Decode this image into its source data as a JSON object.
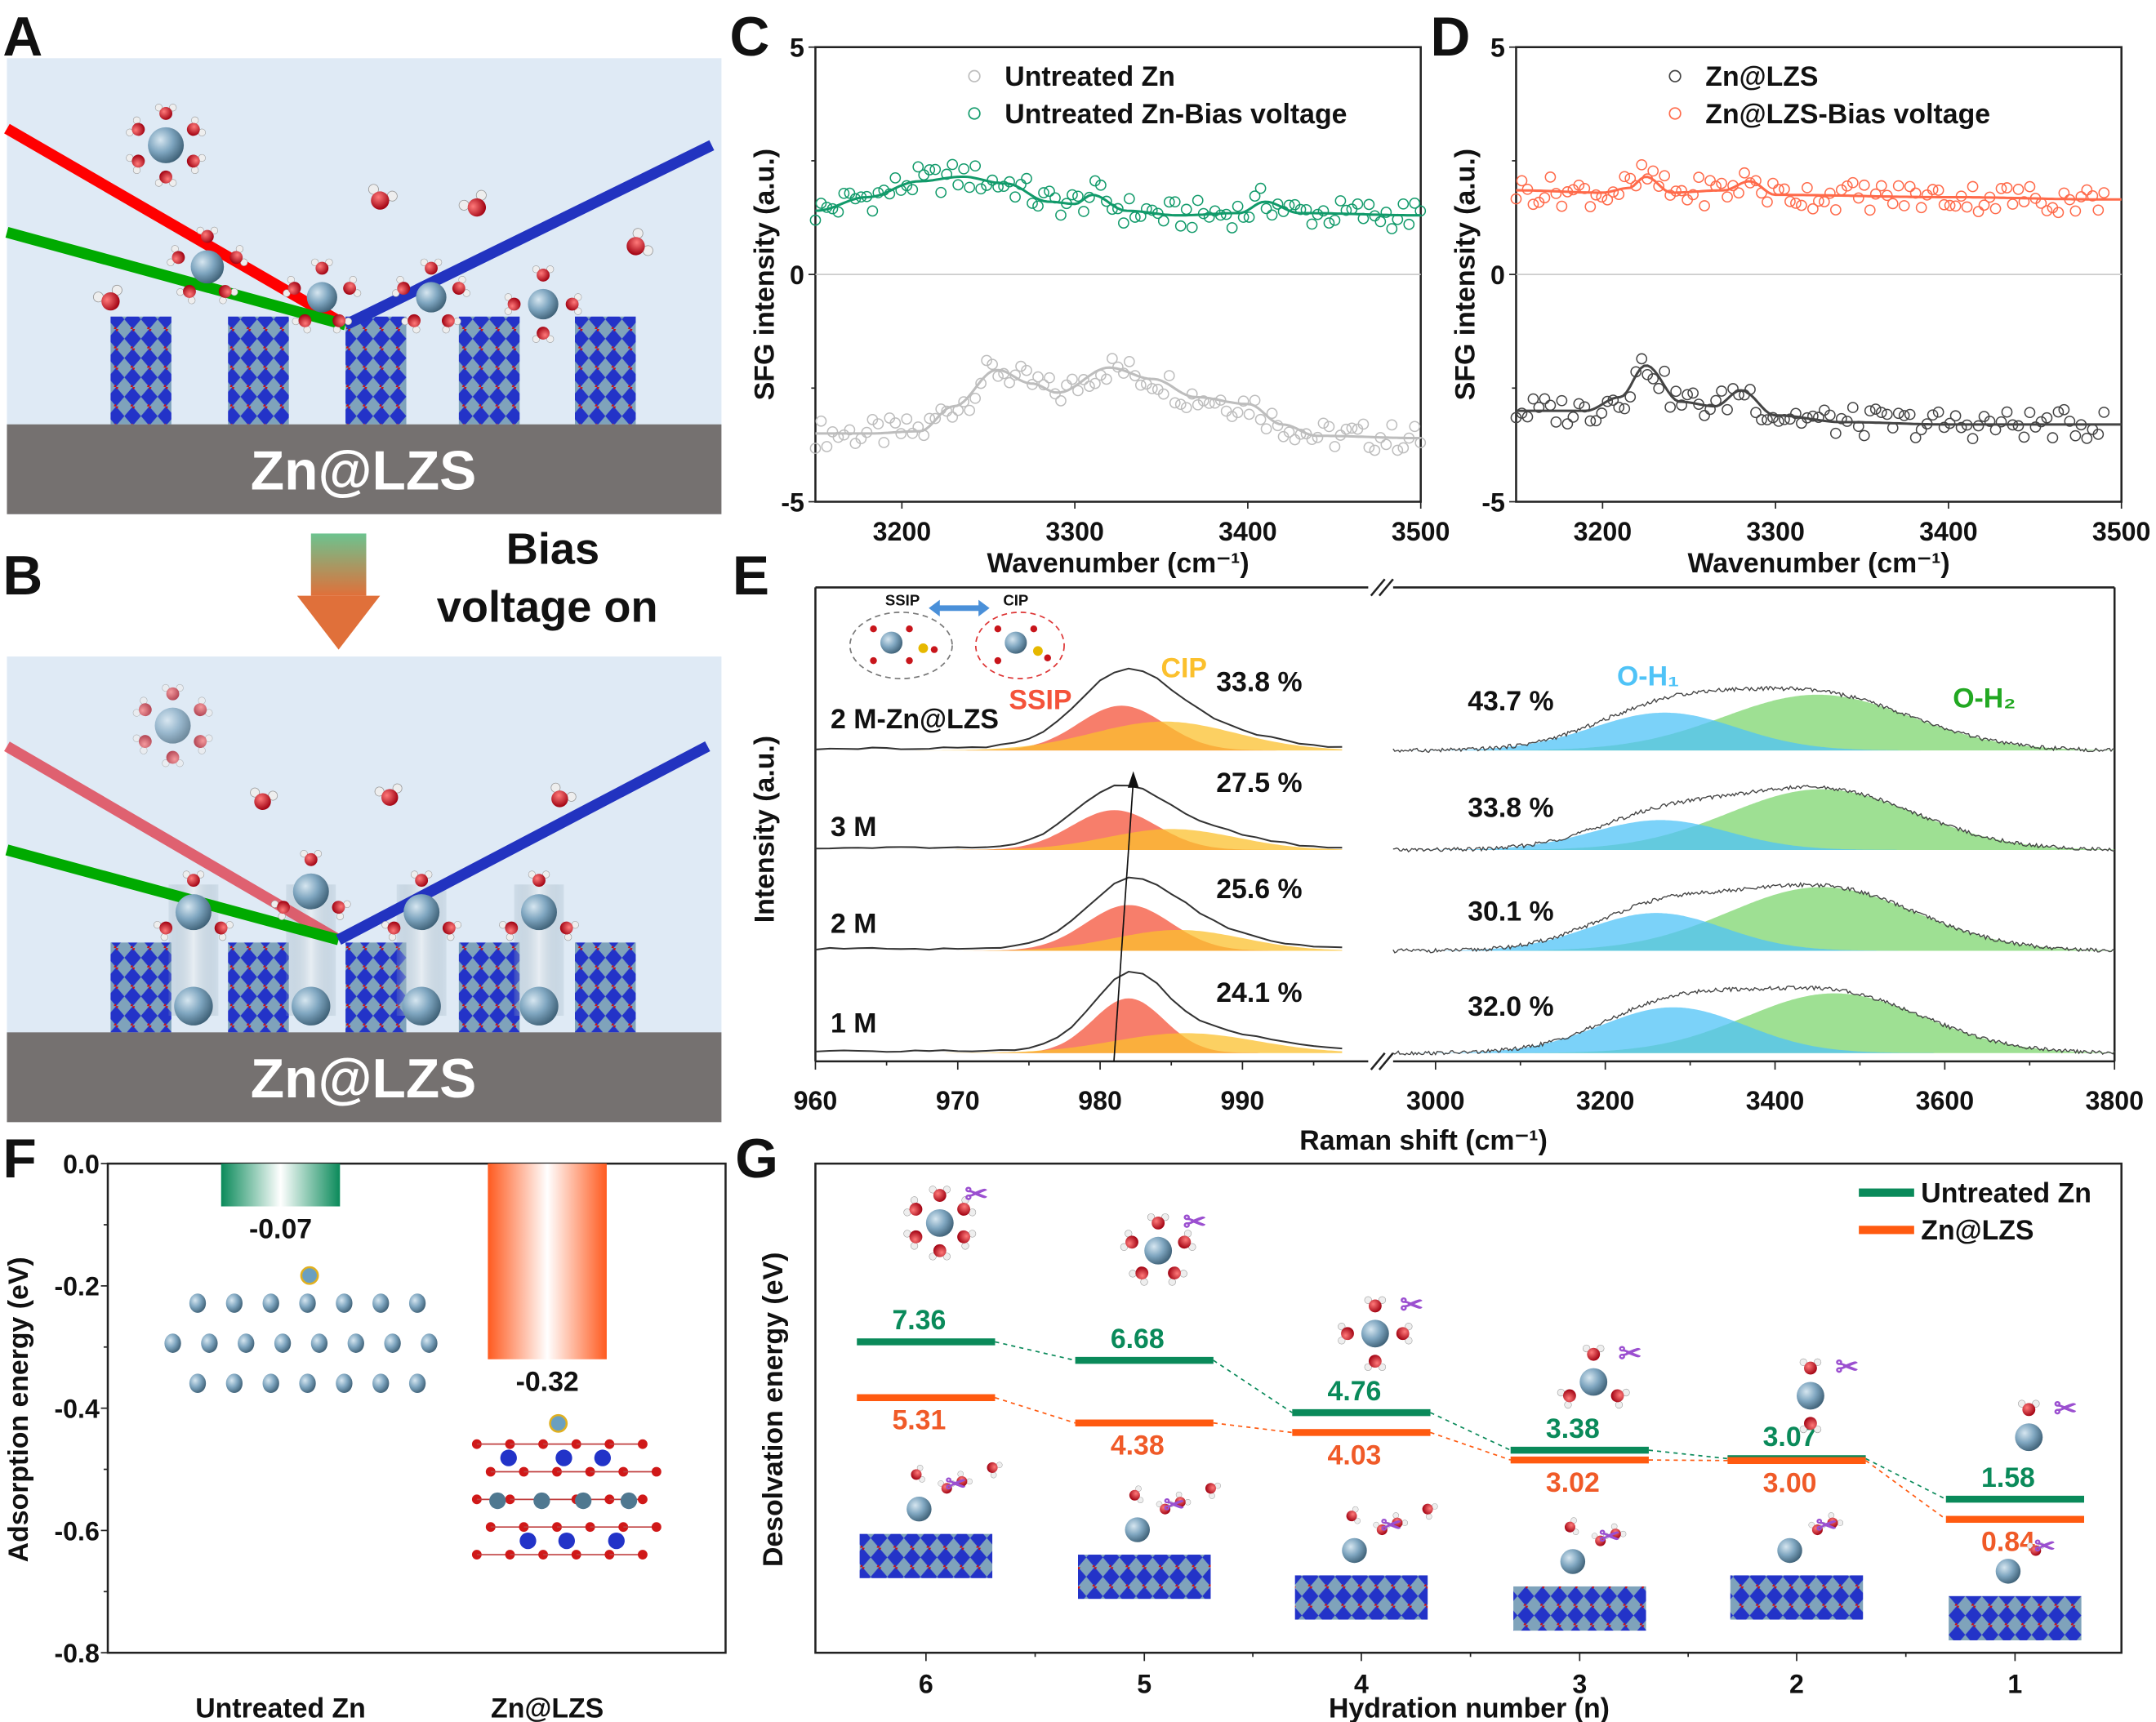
{
  "panels": {
    "A": {
      "label": "A",
      "substrate": "Zn@LZS"
    },
    "B": {
      "label": "B",
      "substrate": "Zn@LZS",
      "arrow_text_line1": "Bias",
      "arrow_text_line2": "voltage on"
    },
    "C": {
      "label": "C"
    },
    "D": {
      "label": "D"
    },
    "E": {
      "label": "E"
    },
    "F": {
      "label": "F"
    },
    "G": {
      "label": "G"
    }
  },
  "colors": {
    "untreated": "#0a8a5a",
    "lzs": "#ff5a10",
    "ssip": "#f4533a",
    "cip": "#fbc02d",
    "oh1": "#4fc3f7",
    "oh2": "#7ed66f",
    "substrate": "#757170",
    "solution": "#dfeaf5"
  },
  "chart_data": [
    {
      "id": "C",
      "type": "scatter",
      "xlabel": "Wavenumber (cm⁻¹)",
      "ylabel": "SFG intensity (a.u.)",
      "xlim": [
        3150,
        3500
      ],
      "ylim": [
        -5,
        5
      ],
      "xticks": [
        "3200",
        "3300",
        "3400",
        "3500"
      ],
      "yticks": [
        "5",
        "0",
        "-5"
      ],
      "series": [
        {
          "name": "Untreated Zn",
          "color": "#bdbdbd",
          "fit_x": [
            3150,
            3180,
            3210,
            3230,
            3255,
            3275,
            3290,
            3320,
            3345,
            3370,
            3400,
            3420,
            3440,
            3500
          ],
          "fit_y": [
            -3.5,
            -3.5,
            -3.45,
            -2.9,
            -2.1,
            -2.4,
            -2.6,
            -2.05,
            -2.3,
            -2.7,
            -2.85,
            -3.3,
            -3.55,
            -3.6
          ]
        },
        {
          "name": "Untreated Zn-Bias voltage",
          "color": "#119a6a",
          "fit_x": [
            3150,
            3180,
            3210,
            3235,
            3260,
            3285,
            3300,
            3310,
            3330,
            3360,
            3395,
            3410,
            3430,
            3500
          ],
          "fit_y": [
            1.4,
            1.7,
            2.05,
            2.15,
            2.0,
            1.6,
            1.55,
            1.75,
            1.4,
            1.3,
            1.35,
            1.6,
            1.35,
            1.3
          ]
        }
      ]
    },
    {
      "id": "D",
      "type": "scatter",
      "xlabel": "Wavenumber (cm⁻¹)",
      "ylabel": "SFG intensity (a.u.)",
      "xlim": [
        3150,
        3500
      ],
      "ylim": [
        -5,
        5
      ],
      "xticks": [
        "3200",
        "3300",
        "3400",
        "3500"
      ],
      "yticks": [
        "5",
        "0",
        "-5"
      ],
      "series": [
        {
          "name": "Zn@LZS",
          "color": "#444444",
          "fit_x": [
            3150,
            3190,
            3210,
            3225,
            3245,
            3265,
            3280,
            3300,
            3340,
            3400,
            3490
          ],
          "fit_y": [
            -3.0,
            -3.0,
            -2.7,
            -2.0,
            -2.8,
            -2.9,
            -2.55,
            -3.1,
            -3.25,
            -3.3,
            -3.3
          ]
        },
        {
          "name": "Zn@LZS-Bias voltage",
          "color": "#ff6a4a",
          "fit_x": [
            3150,
            3200,
            3215,
            3225,
            3240,
            3270,
            3285,
            3300,
            3400,
            3490
          ],
          "fit_y": [
            1.85,
            1.8,
            1.9,
            2.15,
            1.8,
            1.85,
            2.05,
            1.75,
            1.7,
            1.65
          ]
        }
      ]
    },
    {
      "id": "E",
      "type": "area",
      "xlabel": "Raman shift (cm⁻¹)",
      "ylabel": "Intensity (a.u.)",
      "xlim_left": [
        960,
        997
      ],
      "xlim_right": [
        2950,
        3800
      ],
      "xticks_left": [
        "960",
        "970",
        "980",
        "990"
      ],
      "xticks_right": [
        "3000",
        "3200",
        "3400",
        "3600",
        "3800"
      ],
      "component_labels": {
        "ssip": "SSIP",
        "cip": "CIP",
        "oh1": "O-H₁",
        "oh2": "O-H₂"
      },
      "inset_labels": {
        "ssip": "SSIP",
        "cip": "CIP"
      },
      "rows": [
        {
          "label": "2 M-Zn@LZS",
          "cip_percent": "33.8 %",
          "oh_percent": "43.7 %",
          "ssip": [
            981.5,
            3.0,
            0.45
          ],
          "cip": [
            984.5,
            5.0,
            0.29
          ],
          "oh1": [
            3270,
            85,
            0.38
          ],
          "oh2": [
            3450,
            110,
            0.56
          ]
        },
        {
          "label": "3 M",
          "cip_percent": "27.5 %",
          "oh_percent": "33.8 %",
          "ssip": [
            981.0,
            3.0,
            0.4
          ],
          "cip": [
            985.0,
            4.5,
            0.21
          ],
          "oh1": [
            3265,
            80,
            0.3
          ],
          "oh2": [
            3455,
            110,
            0.61
          ]
        },
        {
          "label": "2 M",
          "cip_percent": "25.6 %",
          "oh_percent": "30.1 %",
          "ssip": [
            982.0,
            3.0,
            0.46
          ],
          "cip": [
            985.5,
            4.5,
            0.21
          ],
          "oh1": [
            3260,
            80,
            0.38
          ],
          "oh2": [
            3455,
            110,
            0.64
          ]
        },
        {
          "label": "1 M",
          "cip_percent": "24.1 %",
          "oh_percent": "32.0 %",
          "ssip": [
            982.0,
            2.5,
            0.55
          ],
          "cip": [
            986.0,
            5.0,
            0.2
          ],
          "oh1": [
            3280,
            85,
            0.46
          ],
          "oh2": [
            3470,
            105,
            0.6
          ]
        }
      ],
      "component_order": "[center, width, amplitude]"
    },
    {
      "id": "F",
      "type": "bar",
      "ylabel": "Adsorption energy (eV)",
      "ylim": [
        -0.8,
        0.0
      ],
      "yticks": [
        "0.0",
        "-0.2",
        "-0.4",
        "-0.6",
        "-0.8"
      ],
      "categories": [
        "Untreated Zn",
        "Zn@LZS"
      ],
      "values": [
        -0.07,
        -0.32
      ],
      "value_labels": [
        "-0.07",
        "-0.32"
      ]
    },
    {
      "id": "G",
      "type": "line",
      "xlabel": "Hydration number (n)",
      "ylabel": "Desolvation energy (eV)",
      "categories": [
        "6",
        "5",
        "4",
        "3",
        "2",
        "1"
      ],
      "series": [
        {
          "name": "Untreated Zn",
          "values": [
            7.36,
            6.68,
            4.76,
            3.38,
            3.07,
            1.58
          ],
          "labels": [
            "7.36",
            "6.68",
            "4.76",
            "3.38",
            "3.07",
            "1.58"
          ]
        },
        {
          "name": "Zn@LZS",
          "values": [
            5.31,
            4.38,
            4.03,
            3.02,
            3.0,
            0.84
          ],
          "labels": [
            "5.31",
            "4.38",
            "4.03",
            "3.02",
            "3.00",
            "0.84"
          ]
        }
      ],
      "legend": "top-right"
    }
  ]
}
